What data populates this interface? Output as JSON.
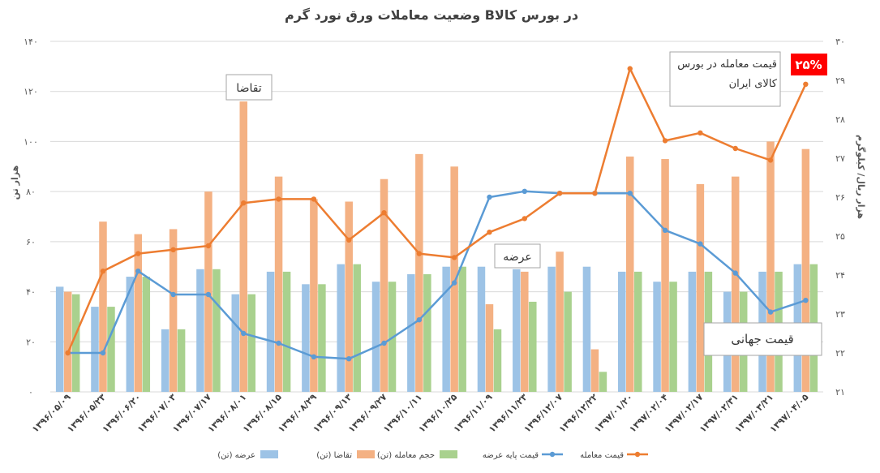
{
  "chart_data": {
    "type": "bar",
    "title": "وضعیت معاملات ورق نورد گرم   Bدر بورس کالا",
    "ylabel_left": "هزار تن",
    "ylabel_right": "هزار ریال/ کیلوگرم",
    "ylim_left": [
      0,
      140
    ],
    "ylim_right": [
      21,
      30
    ],
    "yticks_left": [
      "۰",
      "۲۰",
      "۴۰",
      "۶۰",
      "۸۰",
      "۱۰۰",
      "۱۲۰",
      "۱۴۰"
    ],
    "yticks_right": [
      "۲۱",
      "۲۲",
      "۲۳",
      "۲۴",
      "۲۵",
      "۲۶",
      "۲۷",
      "۲۸",
      "۲۹",
      "۳۰"
    ],
    "grid": true,
    "categories": [
      "۱۳۹۶/۰۵/۰۹",
      "۱۳۹۶/۰۵/۲۳",
      "۱۳۹۶/۰۶/۲۰",
      "۱۳۹۶/۰۷/۰۳",
      "۱۳۹۶/۰۷/۱۷",
      "۱۳۹۶/۰۸/۰۱",
      "۱۳۹۶/۰۸/۱۵",
      "۱۳۹۶/۰۸/۲۹",
      "۱۳۹۶/۰۹/۱۳",
      "۱۳۹۶/۰۹/۲۷",
      "۱۳۹۶/۱۰/۱۱",
      "۱۳۹۶/۱۰/۲۵",
      "۱۳۹۶/۱۱/۰۹",
      "۱۳۹۶/۱۱/۲۳",
      "۱۳۹۶/۱۲/۰۷",
      "۱۳۹۶/۱۲/۲۲",
      "۱۳۹۷/۰۱/۲۰",
      "۱۳۹۷/۰۲/۰۴",
      "۱۳۹۷/۰۲/۱۷",
      "۱۳۹۷/۰۲/۳۱",
      "۱۳۹۷/۰۳/۲۱",
      "۱۳۹۷/۰۴/۰۵"
    ],
    "series": [
      {
        "name": "عرضه (تن)",
        "kind": "bar",
        "axis": "left",
        "color": "#9dc3e6",
        "values": [
          42,
          34,
          46,
          25,
          49,
          39,
          48,
          43,
          51,
          44,
          47,
          50,
          50,
          49,
          50,
          50,
          48,
          44,
          48,
          40,
          48,
          51
        ]
      },
      {
        "name": "تقاضا (تن)",
        "kind": "bar",
        "axis": "left",
        "color": "#f4b183",
        "values": [
          40,
          68,
          63,
          65,
          80,
          116,
          86,
          77,
          76,
          85,
          95,
          90,
          35,
          48,
          56,
          17,
          94,
          93,
          83,
          86,
          100,
          97
        ]
      },
      {
        "name": "حجم معامله (تن)",
        "kind": "bar",
        "axis": "left",
        "color": "#a9d18e",
        "values": [
          39,
          34,
          46,
          25,
          49,
          39,
          48,
          43,
          51,
          44,
          47,
          50,
          25,
          36,
          40,
          8,
          48,
          44,
          48,
          40,
          48,
          51
        ]
      },
      {
        "name": "قیمت پایه عرضه",
        "kind": "line",
        "axis": "right",
        "color": "#5b9bd5",
        "values": [
          22.0,
          22.0,
          24.1,
          23.5,
          23.5,
          22.5,
          22.25,
          21.9,
          21.85,
          22.25,
          22.85,
          23.8,
          26.0,
          26.15,
          26.1,
          26.1,
          26.1,
          25.15,
          24.8,
          24.05,
          23.05,
          23.35
        ]
      },
      {
        "name": "قیمت معامله",
        "kind": "line",
        "axis": "right",
        "color": "#ed7d31",
        "values": [
          22.0,
          24.1,
          24.55,
          24.65,
          24.75,
          25.85,
          25.95,
          25.95,
          24.9,
          25.6,
          24.55,
          24.45,
          25.1,
          25.45,
          26.1,
          26.1,
          29.3,
          27.45,
          27.65,
          27.25,
          26.95,
          28.9
        ]
      }
    ],
    "annotations": {
      "demand": "تقاضا",
      "supply": "عرضه",
      "world_price": "قیمت جهانی",
      "exchange_price": "قیمت معامله در بورس کالای ایران",
      "percent_badge": "۲۵%"
    },
    "legend_position": "bottom",
    "colors": {
      "badge": "#ff0000",
      "grid": "#d9d9d9"
    }
  }
}
